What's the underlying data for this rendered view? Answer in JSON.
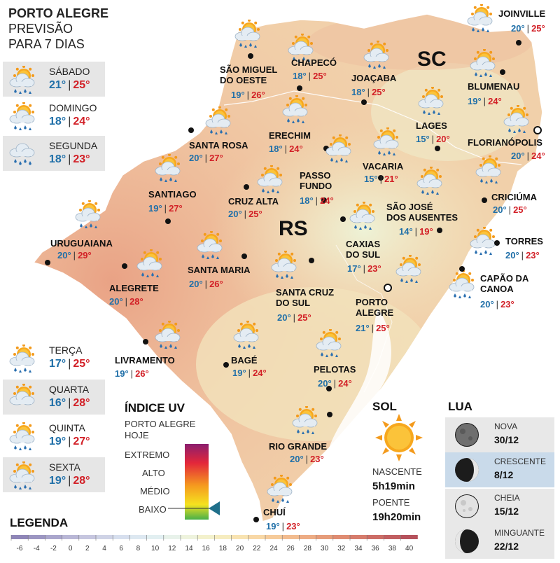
{
  "title": {
    "line1": "PORTO ALEGRE",
    "line2": "PREVISÃO",
    "line3": "PARA 7 DIAS"
  },
  "forecast_days": [
    {
      "name": "SÁBADO",
      "min": "21°",
      "max": "25°",
      "icon": "sun-cloud-rain-icon"
    },
    {
      "name": "DOMINGO",
      "min": "18°",
      "max": "24°",
      "icon": "sun-cloud-rain-icon"
    },
    {
      "name": "SEGUNDA",
      "min": "18°",
      "max": "23°",
      "icon": "cloud-rain-icon"
    },
    {
      "name": "TERÇA",
      "min": "17°",
      "max": "25°",
      "icon": "sun-cloud-rain-icon"
    },
    {
      "name": "QUARTA",
      "min": "16°",
      "max": "28°",
      "icon": "sun-cloud-icon"
    },
    {
      "name": "QUINTA",
      "min": "19°",
      "max": "27°",
      "icon": "sun-cloud-rain-icon"
    },
    {
      "name": "SEXTA",
      "min": "19°",
      "max": "28°",
      "icon": "sun-cloud-rain-icon"
    }
  ],
  "states": {
    "sc": "SC",
    "rs": "RS"
  },
  "cities": [
    {
      "name": "JOINVILLE",
      "min": "20°",
      "max": "25°"
    },
    {
      "name": "CHAPECÓ",
      "min": "18°",
      "max": "25°"
    },
    {
      "name": "SÃO MIGUEL DO OESTE",
      "line1": "SÃO MIGUEL",
      "line2": "DO OESTE",
      "min": "19°",
      "max": "26°"
    },
    {
      "name": "JOAÇABA",
      "min": "18°",
      "max": "25°"
    },
    {
      "name": "BLUMENAU",
      "min": "19°",
      "max": "24°"
    },
    {
      "name": "LAGES",
      "min": "15°",
      "max": "20°"
    },
    {
      "name": "FLORIANÓPOLIS",
      "min": "20°",
      "max": "24°"
    },
    {
      "name": "ERECHIM",
      "min": "18°",
      "max": "24°"
    },
    {
      "name": "SANTA ROSA",
      "min": "20°",
      "max": "27°"
    },
    {
      "name": "VACARIA",
      "min": "15°",
      "max": "21°"
    },
    {
      "name": "PASSO FUNDO",
      "line1": "PASSO",
      "line2": "FUNDO",
      "min": "18°",
      "max": "24°"
    },
    {
      "name": "CRICIÚMA",
      "min": "20°",
      "max": "25°"
    },
    {
      "name": "SANTIAGO",
      "min": "19°",
      "max": "27°"
    },
    {
      "name": "CRUZ ALTA",
      "min": "20°",
      "max": "25°"
    },
    {
      "name": "SÃO JOSÉ DOS AUSENTES",
      "line1": "SÃO JOSÉ",
      "line2": "DOS AUSENTES",
      "min": "14°",
      "max": "19°"
    },
    {
      "name": "URUGUAIANA",
      "min": "20°",
      "max": "29°"
    },
    {
      "name": "TORRES",
      "min": "20°",
      "max": "23°"
    },
    {
      "name": "CAXIAS DO SUL",
      "line1": "CAXIAS",
      "line2": "DO SUL",
      "min": "17°",
      "max": "23°"
    },
    {
      "name": "SANTA MARIA",
      "min": "20°",
      "max": "26°"
    },
    {
      "name": "ALEGRETE",
      "min": "20°",
      "max": "28°"
    },
    {
      "name": "CAPÃO DA CANOA",
      "line1": "CAPÃO DA",
      "line2": "CANOA",
      "min": "20°",
      "max": "23°"
    },
    {
      "name": "SANTA CRUZ DO SUL",
      "line1": "SANTA CRUZ",
      "line2": "DO SUL",
      "min": "20°",
      "max": "25°"
    },
    {
      "name": "PORTO ALEGRE",
      "line1": "PORTO",
      "line2": "ALEGRE",
      "min": "21°",
      "max": "25°"
    },
    {
      "name": "LIVRAMENTO",
      "min": "19°",
      "max": "26°"
    },
    {
      "name": "BAGÉ",
      "min": "19°",
      "max": "24°"
    },
    {
      "name": "PELOTAS",
      "min": "20°",
      "max": "24°"
    },
    {
      "name": "RIO GRANDE",
      "min": "20°",
      "max": "23°"
    },
    {
      "name": "CHUÍ",
      "min": "19°",
      "max": "23°"
    }
  ],
  "uv": {
    "title": "ÍNDICE UV",
    "subtitle1": "PORTO ALEGRE",
    "subtitle2": "HOJE",
    "levels": [
      "EXTREMO",
      "ALTO",
      "MÉDIO",
      "BAIXO"
    ],
    "current_level": "BAIXO"
  },
  "sun": {
    "title": "SOL",
    "sunrise_label": "NASCENTE",
    "sunrise": "5h19min",
    "sunset_label": "POENTE",
    "sunset": "19h20min"
  },
  "moon": {
    "title": "LUA",
    "phases": [
      {
        "name": "NOVA",
        "date": "30/12"
      },
      {
        "name": "CRESCENTE",
        "date": "8/12",
        "highlight": true
      },
      {
        "name": "CHEIA",
        "date": "15/12"
      },
      {
        "name": "MINGUANTE",
        "date": "22/12"
      }
    ]
  },
  "legend": {
    "title": "LEGENDA",
    "ticks": [
      "-6",
      "-4",
      "-2",
      "0",
      "2",
      "4",
      "6",
      "8",
      "10",
      "12",
      "14",
      "16",
      "18",
      "20",
      "22",
      "24",
      "26",
      "28",
      "30",
      "32",
      "34",
      "36",
      "38",
      "40"
    ],
    "colors": [
      "#8f86b8",
      "#9c96c2",
      "#aaa6cc",
      "#b9b7d6",
      "#c6c6df",
      "#cfd3e6",
      "#d7dfee",
      "#dde8f1",
      "#e2eff1",
      "#e8f2ea",
      "#eef3dd",
      "#f3f1cc",
      "#f6ecbf",
      "#f8e3b1",
      "#f8d8a6",
      "#f6cb9a",
      "#f2bc8f",
      "#edac84",
      "#e69c7a",
      "#df8c72",
      "#d67c6c",
      "#cc6d66",
      "#c15f61",
      "#b5525c"
    ]
  },
  "colors": {
    "min_temp": "#1f6fa8",
    "max_temp": "#d21f26",
    "map_warm": "#ecaa8a",
    "map_mild": "#f3ddb6"
  }
}
